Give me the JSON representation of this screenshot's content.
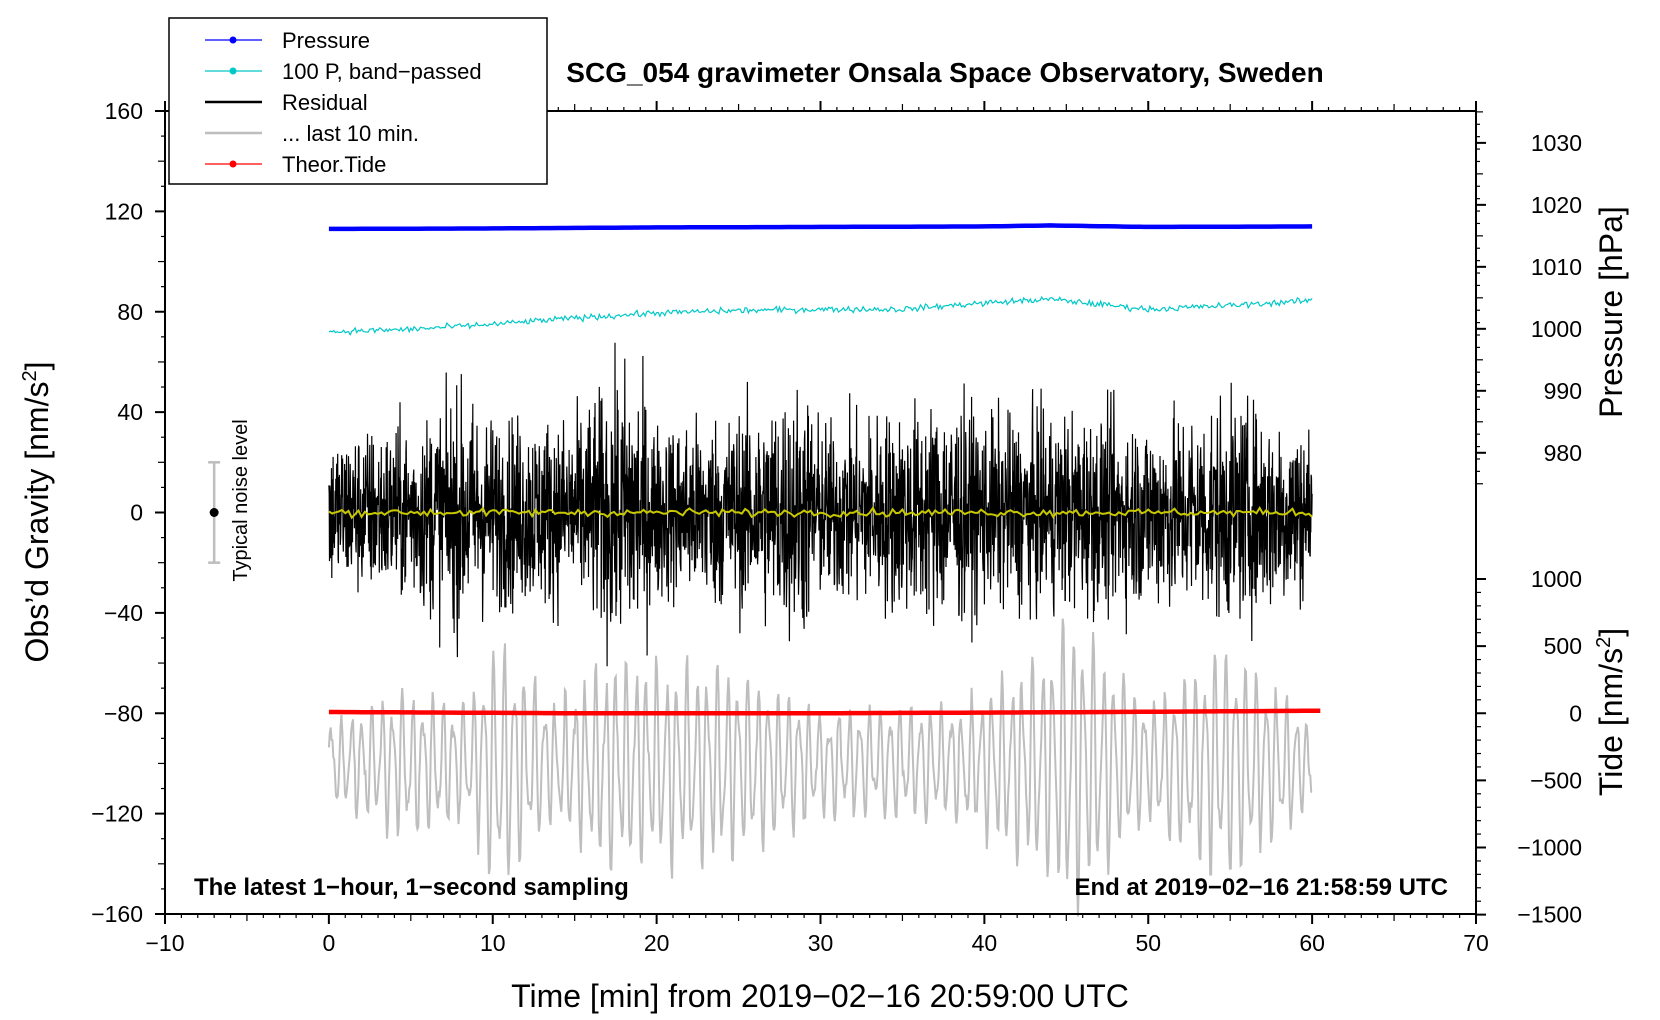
{
  "chart_data": {
    "type": "line",
    "title": "SCG_054 gravimeter Onsala Space Observatory, Sweden",
    "xlabel": "Time [min] from 2019−02−16 20:59:00 UTC",
    "ylabel_left": "Obs’d Gravity [nm/s",
    "ylabel_left_sup": "2",
    "ylabel_left_close": "]",
    "ylabel_right_top": "Pressure [hPa]",
    "ylabel_right_bottom": "Tide [nm/s",
    "ylabel_right_bottom_sup": "2",
    "ylabel_right_bottom_close": "]",
    "xlim": [
      -10,
      70
    ],
    "ylim": [
      -160,
      160
    ],
    "pressure_axis": {
      "range_hPa": [
        975,
        1035
      ],
      "ticks": [
        980,
        990,
        1000,
        1010,
        1020,
        1030
      ]
    },
    "tide_axis": {
      "range_nm_s2": [
        -1500,
        1000
      ],
      "ticks": [
        -1500,
        -1000,
        -500,
        0,
        500,
        1000
      ]
    },
    "x_ticks": [
      -10,
      0,
      10,
      20,
      30,
      40,
      50,
      60,
      70
    ],
    "x_tick_labels": [
      "−10",
      "0",
      "10",
      "20",
      "30",
      "40",
      "50",
      "60",
      "70"
    ],
    "y_ticks": [
      -160,
      -120,
      -80,
      -40,
      0,
      40,
      80,
      120,
      160
    ],
    "y_tick_labels": [
      "−160",
      "−120",
      "−80",
      "−40",
      "0",
      "40",
      "80",
      "120",
      "160"
    ],
    "pressure_tick_labels": [
      "980",
      "990",
      "1000",
      "1010",
      "1020",
      "1030"
    ],
    "tide_tick_labels": [
      "−1500",
      "−1000",
      "−500",
      "0",
      "500",
      "1000"
    ],
    "annotations": {
      "bottom_left": "The latest 1−hour, 1−second sampling",
      "bottom_right": "End at 2019−02−16 21:58:59 UTC",
      "noise_label": "Typical noise level"
    },
    "noise_bar": {
      "x": -7,
      "center": 0,
      "half_range": 20
    },
    "legend": [
      {
        "label": "Pressure",
        "color": "#0000ff",
        "marker": true
      },
      {
        "label": "100 P, band−passed",
        "color": "#00c8c8",
        "marker": true
      },
      {
        "label": "Residual",
        "color": "#000000",
        "marker": false
      },
      {
        "label": "... last 10 min.",
        "color": "#bebebe",
        "marker": false
      },
      {
        "label": "Theor.Tide",
        "color": "#ff0000",
        "marker": true
      }
    ],
    "series": [
      {
        "name": "Pressure",
        "color": "#0000ff",
        "units": "gravity-axis nm/s2",
        "x": [
          0,
          10,
          20,
          30,
          40,
          44,
          50,
          60
        ],
        "values": [
          113,
          113.2,
          113.6,
          113.8,
          114,
          114.4,
          113.8,
          114
        ]
      },
      {
        "name": "100 P, band-passed",
        "color": "#00c8c8",
        "units": "gravity-axis nm/s2",
        "x": [
          0,
          5,
          10,
          15,
          20,
          25,
          30,
          35,
          40,
          44,
          50,
          55,
          60
        ],
        "values": [
          72,
          73,
          75,
          77.5,
          79.5,
          80.5,
          81,
          81,
          83.5,
          85,
          81,
          82.5,
          84.5
        ]
      },
      {
        "name": "Residual",
        "color": "#000000",
        "units": "nm/s2",
        "x": [
          0,
          5,
          8,
          10,
          15,
          18.5,
          20,
          25,
          29,
          30,
          35,
          38,
          40,
          45,
          50,
          55,
          60
        ],
        "envelope_amplitude": [
          40,
          45,
          60,
          48,
          48,
          76,
          45,
          50,
          65,
          45,
          52,
          58,
          48,
          50,
          48,
          55,
          45
        ]
      },
      {
        "name": "Residual smoothed",
        "color": "#c8c800",
        "units": "nm/s2",
        "x": [
          0,
          60
        ],
        "values": [
          0,
          0
        ],
        "jitter": 1.5
      },
      {
        "name": "Theor.Tide",
        "color": "#ff0000",
        "units": "gravity-axis nm/s2",
        "x": [
          0,
          15,
          30,
          45,
          60.5
        ],
        "values": [
          -79.5,
          -80,
          -80,
          -79.6,
          -79
        ]
      },
      {
        "name": "... last 10 min.",
        "color": "#bebebe",
        "units": "gravity-axis nm/s2",
        "x": [
          0,
          4.3,
          8.6,
          10.3,
          13.6,
          17,
          24.8,
          30,
          38.6,
          44.2,
          45,
          50,
          53.4,
          54.8,
          60
        ],
        "center": -100,
        "amplitude": [
          18,
          30,
          25,
          55,
          25,
          45,
          40,
          22,
          25,
          50,
          65,
          25,
          45,
          50,
          18
        ]
      }
    ]
  }
}
